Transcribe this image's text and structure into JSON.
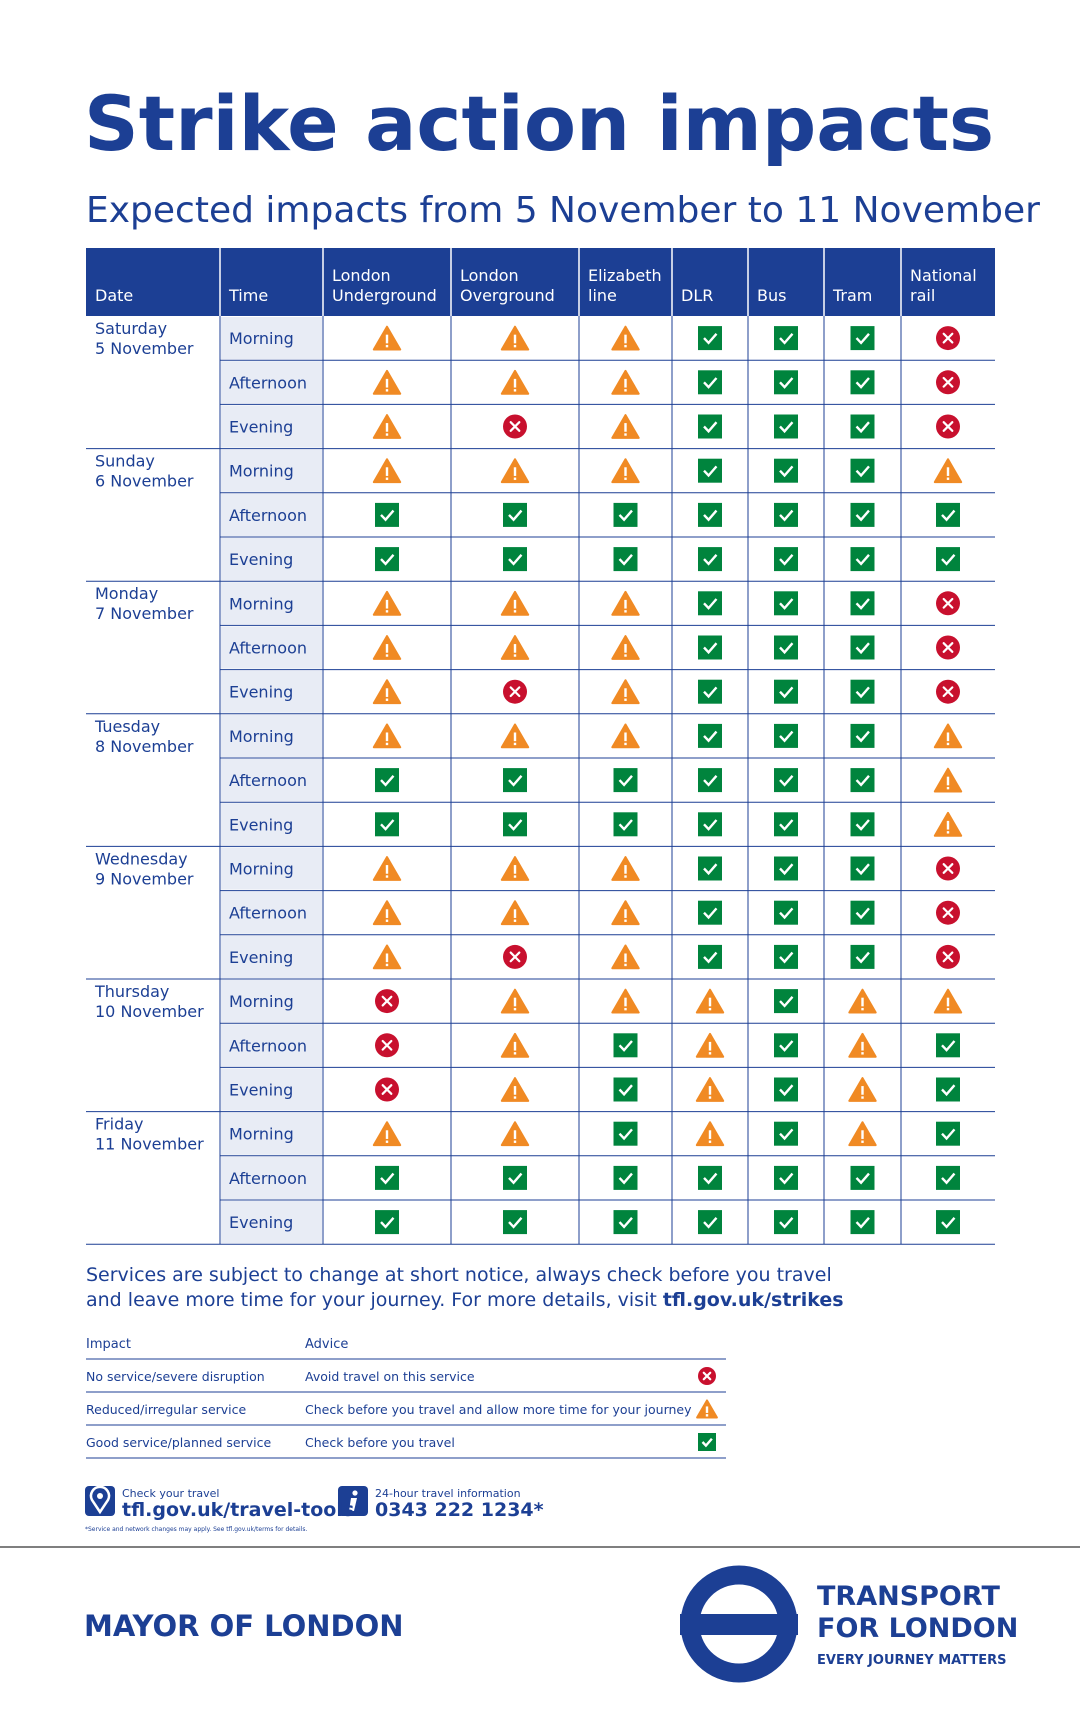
{
  "title": "Strike action impacts",
  "subtitle": "Expected impacts from 5 November to 11 November",
  "table": {
    "headers": [
      "Date",
      "Time",
      "London Underground",
      "London Overground",
      "Elizabeth line",
      "DLR",
      "Bus",
      "Tram",
      "National rail"
    ],
    "days": [
      {
        "day": "Saturday",
        "date": "5 November",
        "slots": [
          {
            "time": "Morning",
            "status": [
              1,
              1,
              1,
              2,
              2,
              2,
              0
            ]
          },
          {
            "time": "Afternoon",
            "status": [
              1,
              1,
              1,
              2,
              2,
              2,
              0
            ]
          },
          {
            "time": "Evening",
            "status": [
              1,
              0,
              1,
              2,
              2,
              2,
              0
            ]
          }
        ]
      },
      {
        "day": "Sunday",
        "date": "6 November",
        "slots": [
          {
            "time": "Morning",
            "status": [
              1,
              1,
              1,
              2,
              2,
              2,
              1
            ]
          },
          {
            "time": "Afternoon",
            "status": [
              2,
              2,
              2,
              2,
              2,
              2,
              2
            ]
          },
          {
            "time": "Evening",
            "status": [
              2,
              2,
              2,
              2,
              2,
              2,
              2
            ]
          }
        ]
      },
      {
        "day": "Monday",
        "date": "7 November",
        "slots": [
          {
            "time": "Morning",
            "status": [
              1,
              1,
              1,
              2,
              2,
              2,
              0
            ]
          },
          {
            "time": "Afternoon",
            "status": [
              1,
              1,
              1,
              2,
              2,
              2,
              0
            ]
          },
          {
            "time": "Evening",
            "status": [
              1,
              0,
              1,
              2,
              2,
              2,
              0
            ]
          }
        ]
      },
      {
        "day": "Tuesday",
        "date": "8 November",
        "slots": [
          {
            "time": "Morning",
            "status": [
              1,
              1,
              1,
              2,
              2,
              2,
              1
            ]
          },
          {
            "time": "Afternoon",
            "status": [
              2,
              2,
              2,
              2,
              2,
              2,
              1
            ]
          },
          {
            "time": "Evening",
            "status": [
              2,
              2,
              2,
              2,
              2,
              2,
              1
            ]
          }
        ]
      },
      {
        "day": "Wednesday",
        "date": "9 November",
        "slots": [
          {
            "time": "Morning",
            "status": [
              1,
              1,
              1,
              2,
              2,
              2,
              0
            ]
          },
          {
            "time": "Afternoon",
            "status": [
              1,
              1,
              1,
              2,
              2,
              2,
              0
            ]
          },
          {
            "time": "Evening",
            "status": [
              1,
              0,
              1,
              2,
              2,
              2,
              0
            ]
          }
        ]
      },
      {
        "day": "Thursday",
        "date": "10 November",
        "slots": [
          {
            "time": "Morning",
            "status": [
              0,
              1,
              1,
              1,
              2,
              1,
              1
            ]
          },
          {
            "time": "Afternoon",
            "status": [
              0,
              1,
              2,
              1,
              2,
              1,
              2
            ]
          },
          {
            "time": "Evening",
            "status": [
              0,
              1,
              2,
              1,
              2,
              1,
              2
            ]
          }
        ]
      },
      {
        "day": "Friday",
        "date": "11 November",
        "slots": [
          {
            "time": "Morning",
            "status": [
              1,
              1,
              2,
              1,
              2,
              1,
              2
            ]
          },
          {
            "time": "Afternoon",
            "status": [
              2,
              2,
              2,
              2,
              2,
              2,
              2
            ]
          },
          {
            "time": "Evening",
            "status": [
              2,
              2,
              2,
              2,
              2,
              2,
              2
            ]
          }
        ]
      }
    ]
  },
  "note": {
    "lines": [
      "Services are subject to change at short notice, always check before you travel",
      "and leave more time for your journey. For more details, visit"
    ],
    "link": "tfl.gov.uk/strikes"
  },
  "legend": {
    "headers": [
      "Impact",
      "Advice"
    ],
    "rows": [
      {
        "impact": "No service/severe disruption",
        "advice": "Avoid travel on this service"
      },
      {
        "impact": "Reduced/irregular service",
        "advice": "Check before you travel and allow more time for your journey"
      },
      {
        "impact": "Good service/planned service",
        "advice": "Check before you travel"
      }
    ]
  },
  "contacts": {
    "travel_tools": {
      "label": "Check your travel",
      "url": "tfl.gov.uk/travel-tools",
      "fine_print": "*Service and network changes may apply. See tfl.gov.uk/terms for details."
    },
    "phone": {
      "label": "24-hour travel information",
      "number": "0343 222 1234*"
    }
  },
  "brand": {
    "mayor": "MAYOR OF LONDON",
    "tfl": [
      "TRANSPORT",
      "FOR LONDON"
    ],
    "tagline": "EVERY JOURNEY MATTERS"
  }
}
